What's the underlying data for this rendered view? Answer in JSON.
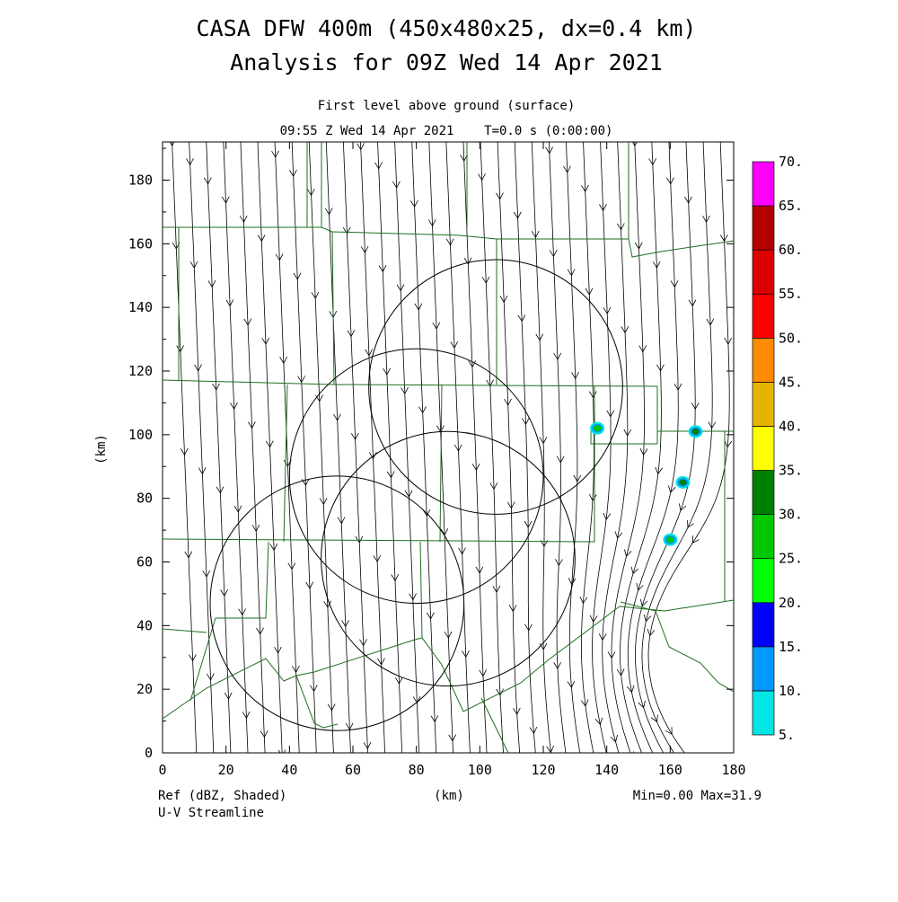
{
  "title_line1": "CASA DFW 400m (450x480x25, dx=0.4 km)",
  "title_line2": "Analysis for 09Z Wed 14 Apr 2021",
  "subtitle_line1": "First level above ground (surface)",
  "subtitle_line2": "09:55 Z Wed 14 Apr 2021    T=0.0 s (0:00:00)",
  "footer_left1": "Ref (dBZ, Shaded)",
  "footer_left2": "U-V Streamline",
  "footer_center": "(km)",
  "footer_right": "Min=0.00 Max=31.9",
  "chart_data": {
    "type": "heatmap",
    "field": "Ref (dBZ, Shaded)",
    "overlay": "U-V Streamline",
    "xlabel": "(km)",
    "ylabel": "(km)",
    "xlim": [
      0,
      180
    ],
    "ylim": [
      0,
      192
    ],
    "x_ticks": [
      "0",
      "20",
      "40",
      "60",
      "80",
      "100",
      "120",
      "140",
      "160",
      "180"
    ],
    "y_ticks": [
      "0",
      "20",
      "40",
      "60",
      "80",
      "100",
      "120",
      "140",
      "160",
      "180"
    ],
    "colorbar": {
      "labels": [
        "5.",
        "10.",
        "15.",
        "20.",
        "25.",
        "30.",
        "35.",
        "40.",
        "45.",
        "50.",
        "55.",
        "60.",
        "65.",
        "70."
      ],
      "colors": [
        "#00e6e6",
        "#0099ff",
        "#0000ff",
        "#00ff00",
        "#00c800",
        "#008000",
        "#ffff00",
        "#e6b400",
        "#ff8c00",
        "#ff0000",
        "#dc0000",
        "#b40000",
        "#ff00ff"
      ]
    },
    "range_rings": [
      {
        "center": [
          105,
          115
        ],
        "radius": 40
      },
      {
        "center": [
          80,
          87
        ],
        "radius": 40
      },
      {
        "center": [
          90,
          61
        ],
        "radius": 40
      },
      {
        "center": [
          55,
          47
        ],
        "radius": 40
      }
    ],
    "echoes": [
      {
        "x": 137,
        "y": 102,
        "dbz": 25
      },
      {
        "x": 168,
        "y": 101,
        "dbz": 30
      },
      {
        "x": 164,
        "y": 85,
        "dbz": 31.9
      },
      {
        "x": 160,
        "y": 67,
        "dbz": 25
      }
    ],
    "min": 0.0,
    "max": 31.9
  }
}
